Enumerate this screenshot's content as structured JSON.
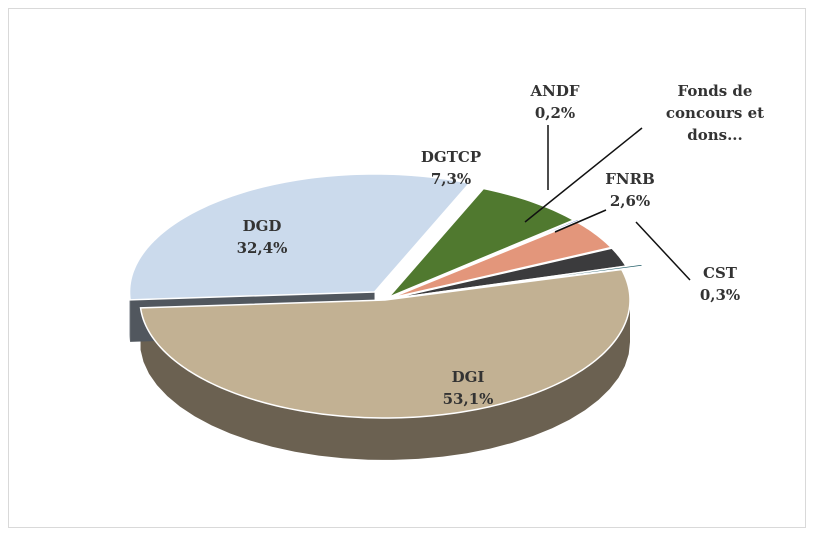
{
  "chart_data": {
    "type": "pie",
    "categories": [
      "DGI",
      "DGD",
      "DGTCP",
      "ANDF",
      "Fonds de concours et dons...",
      "FNRB",
      "CST"
    ],
    "values": [
      53.1,
      32.4,
      7.3,
      0.2,
      4.1,
      2.6,
      0.3
    ],
    "value_labels": [
      "53,1%",
      "32,4%",
      "7,3%",
      "0,2%",
      null,
      "2,6%",
      "0,3%"
    ],
    "colors": [
      "#c2b193",
      "#cbdaec",
      "#50792f",
      "#1f4fb3",
      "#e3967b",
      "#3b3b3d",
      "#1f5b66"
    ]
  }
}
